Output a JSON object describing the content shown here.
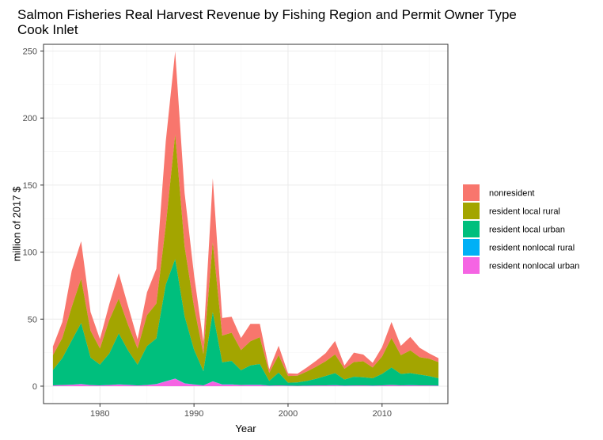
{
  "chart_data": {
    "type": "area",
    "stacked": true,
    "title": "Salmon Fisheries Real Harvest Revenue by Fishing Region and Permit Owner Type",
    "subtitle": "Cook Inlet",
    "xlabel": "Year",
    "ylabel": "million of 2017 $",
    "xlim": [
      1974,
      2017
    ],
    "ylim": [
      -13,
      255
    ],
    "x_ticks": [
      1980,
      1990,
      2000,
      2010
    ],
    "y_ticks": [
      0,
      50,
      100,
      150,
      200,
      250
    ],
    "grid": true,
    "legend_position": "right",
    "x": [
      1975,
      1976,
      1977,
      1978,
      1979,
      1980,
      1981,
      1982,
      1983,
      1984,
      1985,
      1986,
      1987,
      1988,
      1989,
      1990,
      1991,
      1992,
      1993,
      1994,
      1995,
      1996,
      1997,
      1998,
      1999,
      2000,
      2001,
      2002,
      2003,
      2004,
      2005,
      2006,
      2007,
      2008,
      2009,
      2010,
      2011,
      2012,
      2013,
      2014,
      2015,
      2016
    ],
    "series": [
      {
        "name": "resident nonlocal urban",
        "color": "#F564E3",
        "values": [
          0.5,
          0.8,
          1.0,
          1.5,
          0.7,
          0.5,
          0.8,
          1.2,
          0.9,
          0.4,
          0.8,
          1.5,
          3.5,
          5.5,
          2.0,
          1.2,
          0.5,
          3.5,
          1.2,
          1.2,
          0.8,
          0.9,
          0.9,
          0.3,
          0.5,
          0.3,
          0.2,
          0.3,
          0.4,
          0.5,
          0.6,
          0.3,
          0.4,
          0.5,
          0.3,
          0.5,
          0.8,
          0.5,
          0.6,
          0.5,
          0.4,
          0.3
        ]
      },
      {
        "name": "resident nonlocal rural",
        "color": "#00B0F6",
        "values": [
          0.1,
          0.1,
          0.1,
          0.1,
          0.1,
          0.1,
          0.1,
          0.1,
          0.1,
          0.1,
          0.1,
          0.1,
          0.2,
          0.2,
          0.1,
          0.1,
          0.1,
          0.1,
          0.1,
          0.1,
          0.1,
          0.1,
          0.1,
          0.1,
          0.1,
          0.1,
          0.1,
          0.1,
          0.1,
          0.1,
          0.1,
          0.1,
          0.1,
          0.1,
          0.1,
          0.1,
          0.1,
          0.1,
          0.1,
          0.1,
          0.1,
          0.1
        ]
      },
      {
        "name": "resident local urban",
        "color": "#00BF7D",
        "values": [
          11.5,
          20,
          33,
          45.5,
          20.5,
          15.5,
          23.5,
          38,
          25.5,
          15.5,
          29,
          34,
          72,
          89,
          50,
          26,
          10.5,
          51.5,
          16.5,
          17.5,
          11,
          14.5,
          15.5,
          3.5,
          9.5,
          2.2,
          2.5,
          3.5,
          5,
          7,
          9,
          4.5,
          6.5,
          6,
          5.5,
          8.5,
          13,
          8.5,
          9,
          8,
          7,
          5.5
        ]
      },
      {
        "name": "resident local rural",
        "color": "#A3A500",
        "values": [
          11,
          15,
          25,
          33,
          20,
          12,
          25,
          26,
          19,
          12,
          23,
          26,
          44,
          93,
          52,
          32,
          13,
          52,
          20,
          21,
          15,
          18,
          20,
          6,
          13,
          5,
          5,
          7,
          9,
          11,
          14,
          8,
          11,
          12,
          8,
          13,
          22,
          14,
          17,
          13,
          13,
          12
        ]
      },
      {
        "name": "nonresident",
        "color": "#F8766D",
        "values": [
          6.5,
          12,
          27,
          28,
          14,
          7,
          12,
          19,
          14,
          7,
          17,
          26,
          63,
          62,
          40,
          24,
          9,
          48,
          13,
          12,
          9,
          13,
          10,
          2.7,
          7,
          2,
          1.5,
          3,
          4.5,
          6,
          10,
          2.5,
          7,
          5,
          3.5,
          7,
          12,
          7,
          10,
          7,
          4,
          3
        ]
      }
    ]
  }
}
